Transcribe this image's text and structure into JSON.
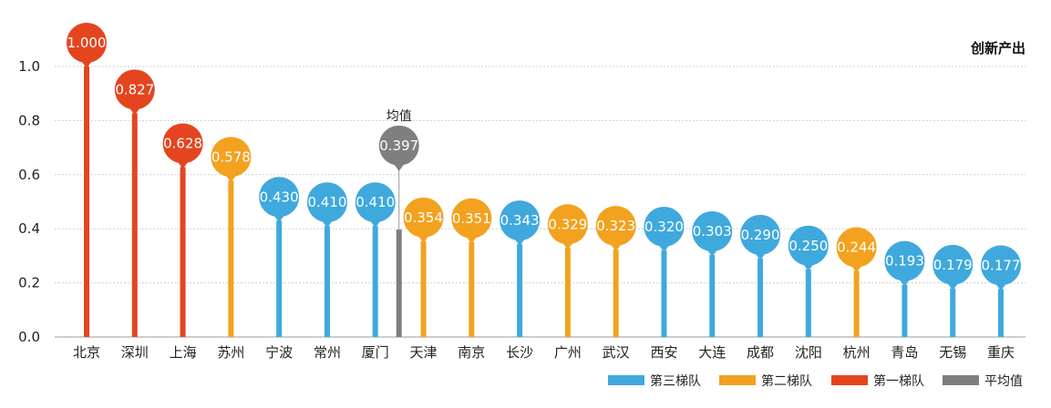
{
  "chart_data": {
    "type": "bar",
    "title": "创新产出",
    "ylim": [
      0,
      1.0
    ],
    "yticks": [
      "0.0",
      "0.2",
      "0.4",
      "0.6",
      "0.8",
      "1.0"
    ],
    "grid": true,
    "legend_position": "bottom-right",
    "average": {
      "label": "均值",
      "value": 0.397,
      "display": "0.397",
      "insert_after": "厦门",
      "tier": "平均值"
    },
    "tiers": [
      {
        "name": "第三梯队",
        "color": "#3fa9dd"
      },
      {
        "name": "第二梯队",
        "color": "#f2a21e"
      },
      {
        "name": "第一梯队",
        "color": "#e4451f"
      },
      {
        "name": "平均值",
        "color": "#7f7f7f"
      }
    ],
    "points": [
      {
        "category": "北京",
        "value": 1.0,
        "display": "1.000",
        "tier": "第一梯队"
      },
      {
        "category": "深圳",
        "value": 0.827,
        "display": "0.827",
        "tier": "第一梯队"
      },
      {
        "category": "上海",
        "value": 0.628,
        "display": "0.628",
        "tier": "第一梯队"
      },
      {
        "category": "苏州",
        "value": 0.578,
        "display": "0.578",
        "tier": "第二梯队"
      },
      {
        "category": "宁波",
        "value": 0.43,
        "display": "0.430",
        "tier": "第三梯队"
      },
      {
        "category": "常州",
        "value": 0.41,
        "display": "0.410",
        "tier": "第三梯队"
      },
      {
        "category": "厦门",
        "value": 0.41,
        "display": "0.410",
        "tier": "第三梯队"
      },
      {
        "category": "天津",
        "value": 0.354,
        "display": "0.354",
        "tier": "第二梯队"
      },
      {
        "category": "南京",
        "value": 0.351,
        "display": "0.351",
        "tier": "第二梯队"
      },
      {
        "category": "长沙",
        "value": 0.343,
        "display": "0.343",
        "tier": "第三梯队"
      },
      {
        "category": "广州",
        "value": 0.329,
        "display": "0.329",
        "tier": "第二梯队"
      },
      {
        "category": "武汉",
        "value": 0.323,
        "display": "0.323",
        "tier": "第二梯队"
      },
      {
        "category": "西安",
        "value": 0.32,
        "display": "0.320",
        "tier": "第三梯队"
      },
      {
        "category": "大连",
        "value": 0.303,
        "display": "0.303",
        "tier": "第三梯队"
      },
      {
        "category": "成都",
        "value": 0.29,
        "display": "0.290",
        "tier": "第三梯队"
      },
      {
        "category": "沈阳",
        "value": 0.25,
        "display": "0.250",
        "tier": "第三梯队"
      },
      {
        "category": "杭州",
        "value": 0.244,
        "display": "0.244",
        "tier": "第二梯队"
      },
      {
        "category": "青岛",
        "value": 0.193,
        "display": "0.193",
        "tier": "第三梯队"
      },
      {
        "category": "无锡",
        "value": 0.179,
        "display": "0.179",
        "tier": "第三梯队"
      },
      {
        "category": "重庆",
        "value": 0.177,
        "display": "0.177",
        "tier": "第三梯队"
      }
    ]
  }
}
